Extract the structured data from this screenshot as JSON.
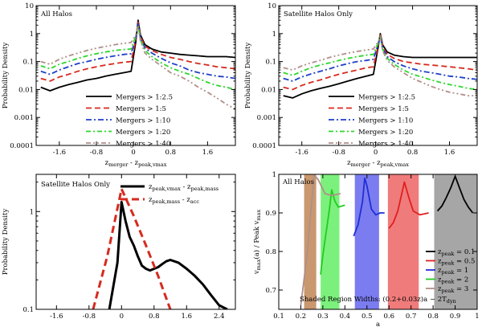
{
  "chart_data": [
    {
      "type": "line",
      "title": "All Halos",
      "xlabel_main": "z",
      "xlabel_sub1": "merger",
      "xlabel_mid": " - z",
      "xlabel_sub2": "peak,vmax",
      "ylabel": "Probability Density",
      "ylog": true,
      "ylim": [
        0.0001,
        10
      ],
      "xlim": [
        -2.1,
        2.2
      ],
      "xticks": [
        "-1.6",
        "-0.8",
        "0",
        "0.8",
        "1.6"
      ],
      "yticks": [
        "0.0001",
        "0.001",
        "0.01",
        "0.1",
        "1",
        "10"
      ],
      "series": [
        {
          "name": "Mergers > 1:2.5",
          "color": "#000000",
          "dash": "",
          "x": [
            -2.0,
            -1.8,
            -1.6,
            -1.4,
            -1.2,
            -1.0,
            -0.8,
            -0.6,
            -0.4,
            -0.2,
            -0.05,
            0.05,
            0.1,
            0.15,
            0.25,
            0.4,
            0.6,
            0.8,
            1.0,
            1.2,
            1.4,
            1.6,
            1.8,
            2.0,
            2.2
          ],
          "y": [
            0.012,
            0.009,
            0.012,
            0.015,
            0.018,
            0.022,
            0.025,
            0.03,
            0.035,
            0.04,
            0.045,
            0.5,
            3.0,
            0.9,
            0.4,
            0.28,
            0.22,
            0.2,
            0.18,
            0.17,
            0.16,
            0.15,
            0.15,
            0.15,
            0.14
          ]
        },
        {
          "name": "Mergers > 1:5",
          "color": "#d62a1e",
          "dash": "7,4",
          "x": [
            -2.0,
            -1.8,
            -1.6,
            -1.4,
            -1.2,
            -1.0,
            -0.8,
            -0.6,
            -0.4,
            -0.2,
            -0.05,
            0.05,
            0.1,
            0.15,
            0.25,
            0.4,
            0.6,
            0.8,
            1.0,
            1.2,
            1.4,
            1.6,
            1.8,
            2.0,
            2.2
          ],
          "y": [
            0.025,
            0.02,
            0.028,
            0.035,
            0.045,
            0.055,
            0.065,
            0.075,
            0.085,
            0.095,
            0.1,
            0.6,
            2.6,
            0.8,
            0.35,
            0.25,
            0.18,
            0.14,
            0.12,
            0.1,
            0.085,
            0.075,
            0.065,
            0.06,
            0.055
          ]
        },
        {
          "name": "Mergers > 1:10",
          "color": "#1f3fc7",
          "dash": "7,3,2,3",
          "x": [
            -2.0,
            -1.8,
            -1.6,
            -1.4,
            -1.2,
            -1.0,
            -0.8,
            -0.6,
            -0.4,
            -0.2,
            -0.05,
            0.05,
            0.1,
            0.15,
            0.25,
            0.4,
            0.6,
            0.8,
            1.0,
            1.2,
            1.4,
            1.6,
            1.8,
            2.0,
            2.2
          ],
          "y": [
            0.045,
            0.035,
            0.05,
            0.065,
            0.085,
            0.1,
            0.12,
            0.14,
            0.16,
            0.18,
            0.19,
            0.7,
            2.2,
            0.7,
            0.3,
            0.2,
            0.13,
            0.09,
            0.07,
            0.05,
            0.04,
            0.035,
            0.03,
            0.028,
            0.025
          ]
        },
        {
          "name": "Mergers > 1:20",
          "color": "#2ed62e",
          "dash": "6,3,2,3",
          "x": [
            -2.0,
            -1.8,
            -1.6,
            -1.4,
            -1.2,
            -1.0,
            -0.8,
            -0.6,
            -0.4,
            -0.2,
            -0.05,
            0.05,
            0.1,
            0.15,
            0.25,
            0.4,
            0.6,
            0.8,
            1.0,
            1.2,
            1.4,
            1.6,
            1.8,
            2.0,
            2.2
          ],
          "y": [
            0.07,
            0.055,
            0.08,
            0.1,
            0.13,
            0.16,
            0.19,
            0.22,
            0.25,
            0.27,
            0.28,
            0.8,
            2.0,
            0.6,
            0.25,
            0.15,
            0.09,
            0.06,
            0.045,
            0.035,
            0.025,
            0.018,
            0.014,
            0.012,
            0.01
          ]
        },
        {
          "name": "Mergers > 1:40",
          "color": "#b08f8a",
          "dash": "6,3,2,3,2,3",
          "x": [
            -2.0,
            -1.8,
            -1.6,
            -1.4,
            -1.2,
            -1.0,
            -0.8,
            -0.6,
            -0.4,
            -0.2,
            -0.05,
            0.05,
            0.1,
            0.15,
            0.25,
            0.4,
            0.6,
            0.8,
            1.0,
            1.2,
            1.4,
            1.6,
            1.8,
            2.0,
            2.2
          ],
          "y": [
            0.1,
            0.08,
            0.12,
            0.16,
            0.2,
            0.25,
            0.3,
            0.35,
            0.4,
            0.45,
            0.48,
            0.9,
            1.8,
            0.55,
            0.2,
            0.12,
            0.07,
            0.04,
            0.03,
            0.02,
            0.012,
            0.008,
            0.005,
            0.003,
            0.002
          ]
        }
      ]
    },
    {
      "type": "line",
      "title": "Satellite Halos Only",
      "xlabel_main": "z",
      "xlabel_sub1": "merger",
      "xlabel_mid": " - z",
      "xlabel_sub2": "peak,vmax",
      "ylabel": "Probability Density",
      "ylog": true,
      "ylim": [
        0.0001,
        10
      ],
      "xlim": [
        -2.1,
        2.2
      ],
      "xticks": [
        "-1.6",
        "-0.8",
        "0",
        "0.8",
        "1.6"
      ],
      "yticks": [
        "0.0001",
        "0.001",
        "0.01",
        "0.1",
        "1",
        "10"
      ],
      "series": [
        {
          "name": "Mergers > 1:2.5",
          "color": "#000000",
          "dash": "",
          "x": [
            -2.0,
            -1.8,
            -1.6,
            -1.4,
            -1.2,
            -1.0,
            -0.8,
            -0.6,
            -0.4,
            -0.2,
            -0.05,
            0.05,
            0.1,
            0.15,
            0.25,
            0.4,
            0.6,
            0.8,
            1.0,
            1.2,
            1.4,
            1.6,
            1.8,
            2.0,
            2.2
          ],
          "y": [
            0.006,
            0.005,
            0.007,
            0.009,
            0.011,
            0.013,
            0.016,
            0.02,
            0.025,
            0.03,
            0.035,
            0.3,
            1.0,
            0.4,
            0.22,
            0.17,
            0.15,
            0.14,
            0.14,
            0.14,
            0.14,
            0.14,
            0.14,
            0.14,
            0.14
          ]
        },
        {
          "name": "Mergers > 1:5",
          "color": "#d62a1e",
          "dash": "7,4",
          "x": [
            -2.0,
            -1.8,
            -1.6,
            -1.4,
            -1.2,
            -1.0,
            -0.8,
            -0.6,
            -0.4,
            -0.2,
            -0.05,
            0.05,
            0.1,
            0.15,
            0.25,
            0.4,
            0.6,
            0.8,
            1.0,
            1.2,
            1.4,
            1.6,
            1.8,
            2.0,
            2.2
          ],
          "y": [
            0.012,
            0.01,
            0.014,
            0.018,
            0.022,
            0.028,
            0.035,
            0.042,
            0.05,
            0.06,
            0.065,
            0.35,
            0.9,
            0.35,
            0.18,
            0.13,
            0.1,
            0.09,
            0.08,
            0.075,
            0.07,
            0.065,
            0.06,
            0.055,
            0.05
          ]
        },
        {
          "name": "Mergers > 1:10",
          "color": "#1f3fc7",
          "dash": "7,3,2,3",
          "x": [
            -2.0,
            -1.8,
            -1.6,
            -1.4,
            -1.2,
            -1.0,
            -0.8,
            -0.6,
            -0.4,
            -0.2,
            -0.05,
            0.05,
            0.1,
            0.15,
            0.25,
            0.4,
            0.6,
            0.8,
            1.0,
            1.2,
            1.4,
            1.6,
            1.8,
            2.0,
            2.2
          ],
          "y": [
            0.025,
            0.02,
            0.028,
            0.036,
            0.045,
            0.055,
            0.07,
            0.085,
            0.1,
            0.11,
            0.12,
            0.4,
            0.85,
            0.3,
            0.15,
            0.1,
            0.07,
            0.055,
            0.045,
            0.04,
            0.035,
            0.03,
            0.028,
            0.025,
            0.023
          ]
        },
        {
          "name": "Mergers > 1:20",
          "color": "#2ed62e",
          "dash": "6,3,2,3",
          "x": [
            -2.0,
            -1.8,
            -1.6,
            -1.4,
            -1.2,
            -1.0,
            -0.8,
            -0.6,
            -0.4,
            -0.2,
            -0.05,
            0.05,
            0.1,
            0.15,
            0.25,
            0.4,
            0.6,
            0.8,
            1.0,
            1.2,
            1.4,
            1.6,
            1.8,
            2.0,
            2.2
          ],
          "y": [
            0.04,
            0.032,
            0.045,
            0.06,
            0.075,
            0.09,
            0.11,
            0.13,
            0.15,
            0.17,
            0.18,
            0.45,
            0.8,
            0.28,
            0.13,
            0.08,
            0.05,
            0.035,
            0.028,
            0.022,
            0.018,
            0.015,
            0.013,
            0.011,
            0.01
          ]
        },
        {
          "name": "Mergers > 1:40",
          "color": "#b08f8a",
          "dash": "6,3,2,3,2,3",
          "x": [
            -2.0,
            -1.8,
            -1.6,
            -1.4,
            -1.2,
            -1.0,
            -0.8,
            -0.6,
            -0.4,
            -0.2,
            -0.05,
            0.05,
            0.1,
            0.15,
            0.25,
            0.4,
            0.6,
            0.8,
            1.0,
            1.2,
            1.4,
            1.6,
            1.8,
            2.0,
            2.2
          ],
          "y": [
            0.06,
            0.05,
            0.07,
            0.09,
            0.11,
            0.14,
            0.17,
            0.2,
            0.23,
            0.26,
            0.28,
            0.5,
            0.75,
            0.25,
            0.11,
            0.065,
            0.04,
            0.025,
            0.018,
            0.013,
            0.01,
            0.008,
            0.007,
            0.006,
            0.006
          ]
        }
      ]
    },
    {
      "type": "line",
      "title": "Satellite Halos Only",
      "ylabel": "Probability Density",
      "ylog": true,
      "ylim": [
        0.1,
        2.4
      ],
      "xlim": [
        -2.1,
        2.8
      ],
      "xticks": [
        "-1.6",
        "-0.8",
        "0",
        "0.8",
        "1.6",
        "2.4"
      ],
      "yticks": [
        "0.1",
        "1"
      ],
      "series": [
        {
          "name": "z peak,vmax - z peak,mass",
          "label_parts": [
            "z",
            "peak,vmax",
            " - z",
            "peak,mass"
          ],
          "color": "#000000",
          "dash": "",
          "width": 3,
          "x": [
            -0.3,
            -0.1,
            0.0,
            0.1,
            0.2,
            0.3,
            0.4,
            0.5,
            0.6,
            0.7,
            0.8,
            0.9,
            1.0,
            1.1,
            1.2,
            1.4,
            1.6,
            1.8,
            2.0,
            2.2,
            2.4,
            2.6
          ],
          "y": [
            0.1,
            0.3,
            1.25,
            0.8,
            0.55,
            0.45,
            0.35,
            0.28,
            0.26,
            0.25,
            0.26,
            0.27,
            0.29,
            0.31,
            0.32,
            0.3,
            0.26,
            0.22,
            0.18,
            0.14,
            0.11,
            0.1
          ]
        },
        {
          "name": "z peak,mass - z acc",
          "label_parts": [
            "z",
            "peak,mass",
            " - z",
            "acc"
          ],
          "color": "#d62a1e",
          "dash": "9,5",
          "width": 3,
          "x": [
            -0.7,
            -0.35,
            0.0,
            0.3,
            0.6,
            0.9,
            1.2
          ],
          "y": [
            0.1,
            0.35,
            1.7,
            0.9,
            0.45,
            0.22,
            0.1
          ]
        }
      ]
    },
    {
      "type": "line",
      "title": "All Halos",
      "xlabel": "a",
      "ylabel_main": "v",
      "ylabel_sub1": "max",
      "ylabel_mid": "(a) / Peak v",
      "ylabel_sub2": "max",
      "ylim": [
        0.65,
        1.0
      ],
      "xlim": [
        0.1,
        1.0
      ],
      "xticks": [
        "0.1",
        "0.2",
        "0.3",
        "0.4",
        "0.5",
        "0.6",
        "0.7",
        "0.8",
        "0.9",
        "1"
      ],
      "yticks": [
        "0.7",
        "0.8",
        "0.9",
        "1"
      ],
      "annotation_main": "Shaded Region Widths: (0.2+0.03z)a ~ 2T",
      "annotation_sub": "dyn",
      "shaded_regions": [
        {
          "x0": 0.215,
          "x1": 0.27,
          "color": "#c9986f"
        },
        {
          "x0": 0.29,
          "x1": 0.375,
          "color": "#7cf07c"
        },
        {
          "x0": 0.445,
          "x1": 0.555,
          "color": "#7b7cf0"
        },
        {
          "x0": 0.595,
          "x1": 0.735,
          "color": "#f07b7b"
        },
        {
          "x0": 0.805,
          "x1": 1.0,
          "color": "#a6a6a6"
        }
      ],
      "series": [
        {
          "name": "z peak = 0.1",
          "label_parts": [
            "z",
            "peak",
            " = 0.1"
          ],
          "color": "#000000",
          "x": [
            0.82,
            0.84,
            0.86,
            0.88,
            0.9,
            0.92,
            0.94,
            0.96,
            0.98
          ],
          "y": [
            0.905,
            0.918,
            0.94,
            0.965,
            0.995,
            0.965,
            0.935,
            0.915,
            0.9
          ]
        },
        {
          "name": "z peak = 0.5",
          "label_parts": [
            "z",
            "peak",
            " = 0.5"
          ],
          "color": "#e01f1f",
          "x": [
            0.6,
            0.62,
            0.64,
            0.66,
            0.67,
            0.69,
            0.71,
            0.74,
            0.78
          ],
          "y": [
            0.86,
            0.875,
            0.905,
            0.955,
            0.98,
            0.94,
            0.905,
            0.895,
            0.9
          ]
        },
        {
          "name": "z peak = 1",
          "label_parts": [
            "z",
            "peak",
            " = 1"
          ],
          "color": "#1f2fd6",
          "x": [
            0.44,
            0.46,
            0.48,
            0.49,
            0.5,
            0.52,
            0.54,
            0.56,
            0.58
          ],
          "y": [
            0.84,
            0.87,
            0.93,
            0.99,
            0.97,
            0.91,
            0.895,
            0.9,
            0.9
          ]
        },
        {
          "name": "z peak = 2",
          "label_parts": [
            "z",
            "peak",
            " = 2"
          ],
          "color": "#22cc22",
          "x": [
            0.29,
            0.3,
            0.31,
            0.32,
            0.33,
            0.34,
            0.355,
            0.37,
            0.4
          ],
          "y": [
            0.74,
            0.79,
            0.83,
            0.87,
            0.91,
            0.96,
            0.93,
            0.915,
            0.92
          ]
        },
        {
          "name": "z peak = 3",
          "label_parts": [
            "z",
            "peak",
            " = 3"
          ],
          "color": "#b08f8a",
          "x": [
            0.2,
            0.215,
            0.23,
            0.24,
            0.25,
            0.26,
            0.28,
            0.31,
            0.34,
            0.38
          ],
          "y": [
            0.66,
            0.73,
            0.8,
            0.87,
            0.93,
            1.0,
            0.985,
            0.95,
            0.945,
            0.95
          ]
        }
      ]
    }
  ]
}
